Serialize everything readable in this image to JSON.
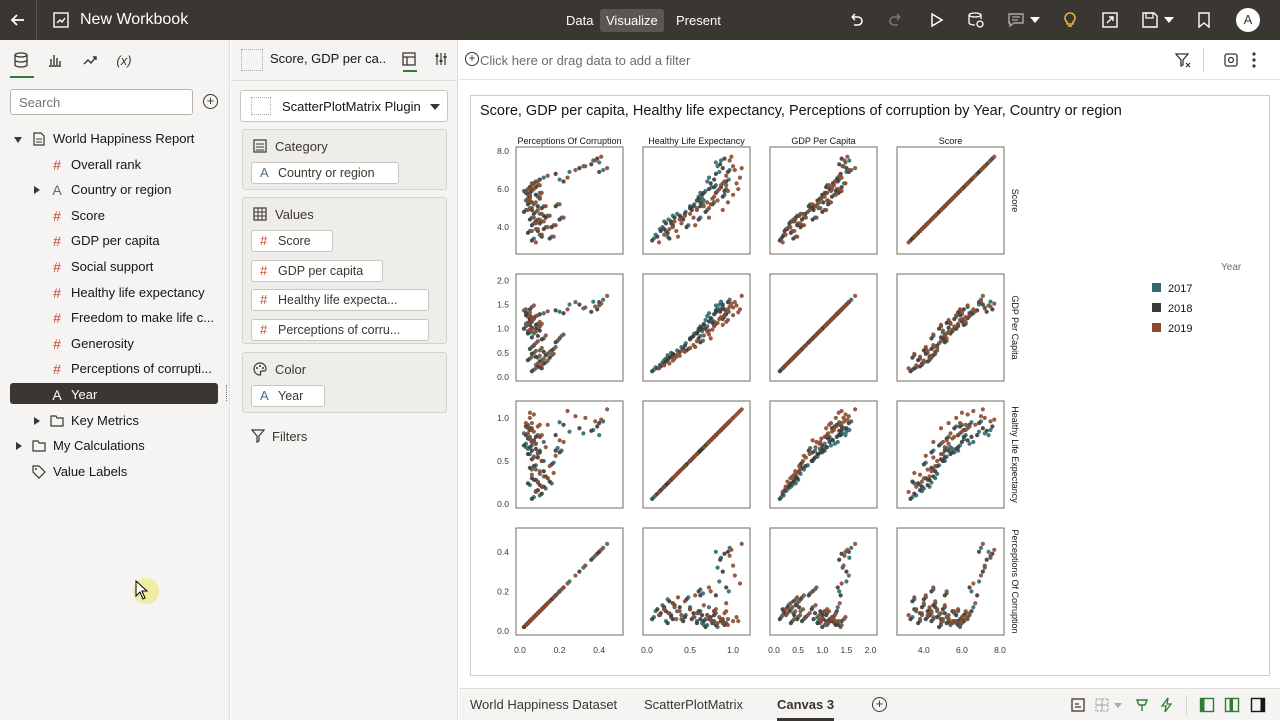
{
  "topbar": {
    "title": "New Workbook",
    "modes": [
      {
        "label": "Data",
        "active": false
      },
      {
        "label": "Visualize",
        "active": true
      },
      {
        "label": "Present",
        "active": false
      }
    ],
    "avatar": "A"
  },
  "left_panel": {
    "search_placeholder": "Search",
    "tree": [
      {
        "label": "World Happiness Report",
        "kind": "dataset",
        "indent": 0,
        "caret": "down"
      },
      {
        "label": "Overall rank",
        "kind": "measure",
        "indent": 1,
        "caret": ""
      },
      {
        "label": "Country or region",
        "kind": "attribute",
        "indent": 1,
        "caret": "right"
      },
      {
        "label": "Score",
        "kind": "measure",
        "indent": 1,
        "caret": ""
      },
      {
        "label": "GDP per capita",
        "kind": "measure",
        "indent": 1,
        "caret": ""
      },
      {
        "label": "Social support",
        "kind": "measure",
        "indent": 1,
        "caret": ""
      },
      {
        "label": "Healthy life expectancy",
        "kind": "measure",
        "indent": 1,
        "caret": ""
      },
      {
        "label": "Freedom to make life c...",
        "kind": "measure",
        "indent": 1,
        "caret": ""
      },
      {
        "label": "Generosity",
        "kind": "measure",
        "indent": 1,
        "caret": ""
      },
      {
        "label": "Perceptions of corrupti...",
        "kind": "measure",
        "indent": 1,
        "caret": ""
      },
      {
        "label": "Year",
        "kind": "attribute",
        "indent": 1,
        "caret": "",
        "selected": true
      },
      {
        "label": "Key Metrics",
        "kind": "folder",
        "indent": 1,
        "caret": "right"
      },
      {
        "label": "My Calculations",
        "kind": "folder",
        "indent": 0,
        "caret": "right"
      },
      {
        "label": "Value Labels",
        "kind": "tag",
        "indent": 0,
        "caret": ""
      }
    ]
  },
  "grammar": {
    "viz_name": "Score, GDP per ca...",
    "plugin": "ScatterPlotMatrix Plugin",
    "sections": [
      {
        "title": "Category",
        "icon": "list-icon",
        "items": [
          {
            "label": "Country or region",
            "kind": "attribute",
            "width": 148
          }
        ]
      },
      {
        "title": "Values",
        "icon": "grid-icon",
        "items": [
          {
            "label": "Score",
            "kind": "measure",
            "width": 82
          },
          {
            "label": "GDP per capita",
            "kind": "measure",
            "width": 132
          },
          {
            "label": "Healthy life expecta...",
            "kind": "measure",
            "width": 178
          },
          {
            "label": "Perceptions of corru...",
            "kind": "measure",
            "width": 178
          }
        ]
      },
      {
        "title": "Color",
        "icon": "palette-icon",
        "items": [
          {
            "label": "Year",
            "kind": "attribute",
            "width": 74
          }
        ]
      }
    ],
    "filters_label": "Filters"
  },
  "canvas": {
    "filter_placeholder": "Click here or drag data to add a filter"
  },
  "bottom_tabs": [
    {
      "label": "World Happiness Dataset",
      "active": false
    },
    {
      "label": "ScatterPlotMatrix",
      "active": false
    },
    {
      "label": "Canvas 3",
      "active": true
    }
  ],
  "chart_data": {
    "type": "scatter",
    "title": "Score, GDP per capita, Healthy life expectancy, Perceptions of corruption by Year, Country or region",
    "variables": [
      {
        "name": "Perceptions Of Corruption",
        "range": [
          0,
          0.5
        ],
        "ticks": [
          "0.0",
          "0.2",
          "0.4"
        ],
        "tick_values": [
          0,
          0.2,
          0.4
        ]
      },
      {
        "name": "Healthy Life Expectancy",
        "range": [
          0,
          1.15
        ],
        "ticks": [
          "0.0",
          "0.5",
          "1.0"
        ],
        "tick_values": [
          0,
          0.5,
          1.0
        ]
      },
      {
        "name": "GDP Per Capita",
        "range": [
          0,
          2.05
        ],
        "ticks": [
          "0.0",
          "0.5",
          "1.0",
          "1.5",
          "2.0"
        ],
        "tick_values": [
          0,
          0.5,
          1.0,
          1.5,
          2.0
        ]
      },
      {
        "name": "Score",
        "range": [
          2.8,
          8.0
        ],
        "ticks": [
          "4.0",
          "6.0",
          "8.0"
        ],
        "tick_values": [
          4.0,
          6.0,
          8.0
        ]
      }
    ],
    "column_order": [
      "Perceptions Of Corruption",
      "Healthy Life Expectancy",
      "GDP Per Capita",
      "Score"
    ],
    "row_order": [
      "Score",
      "GDP Per Capita",
      "Healthy Life Expectancy",
      "Perceptions Of Corruption"
    ],
    "legend": {
      "title": "Year",
      "placement": "right",
      "items": [
        {
          "label": "2017",
          "color": "#2e6b6e"
        },
        {
          "label": "2018",
          "color": "#3c3a37"
        },
        {
          "label": "2019",
          "color": "#8c4a2f"
        }
      ]
    },
    "series_note": "Points per year sampled from the World Happiness Report (approx. 150 countries each)",
    "series": [
      {
        "name": "2017",
        "color": "#2e6b6e",
        "points": [
          [
            7.5,
            1.56,
            0.86,
            0.37
          ],
          [
            7.4,
            1.48,
            0.8,
            0.4
          ],
          [
            7.2,
            1.42,
            0.82,
            0.32
          ],
          [
            6.9,
            1.5,
            0.84,
            0.25
          ],
          [
            6.6,
            1.32,
            0.72,
            0.12
          ],
          [
            6.4,
            1.26,
            0.7,
            0.08
          ],
          [
            6.1,
            1.2,
            0.75,
            0.05
          ],
          [
            5.9,
            1.18,
            0.68,
            0.06
          ],
          [
            5.8,
            1.05,
            0.62,
            0.1
          ],
          [
            5.6,
            1.0,
            0.6,
            0.09
          ],
          [
            5.5,
            0.95,
            0.64,
            0.04
          ],
          [
            5.4,
            1.1,
            0.66,
            0.03
          ],
          [
            5.2,
            0.9,
            0.55,
            0.07
          ],
          [
            5.1,
            0.8,
            0.5,
            0.12
          ],
          [
            5.0,
            0.92,
            0.58,
            0.05
          ],
          [
            4.8,
            0.7,
            0.45,
            0.08
          ],
          [
            4.7,
            0.55,
            0.35,
            0.1
          ],
          [
            4.6,
            0.48,
            0.3,
            0.14
          ],
          [
            4.5,
            0.62,
            0.4,
            0.06
          ],
          [
            4.4,
            0.4,
            0.25,
            0.09
          ],
          [
            4.3,
            0.35,
            0.2,
            0.11
          ],
          [
            4.2,
            0.5,
            0.28,
            0.07
          ],
          [
            4.0,
            0.3,
            0.18,
            0.13
          ],
          [
            3.9,
            0.25,
            0.15,
            0.08
          ],
          [
            3.8,
            0.38,
            0.22,
            0.05
          ],
          [
            3.6,
            0.2,
            0.1,
            0.1
          ],
          [
            3.5,
            0.45,
            0.24,
            0.16
          ],
          [
            3.4,
            0.15,
            0.08,
            0.07
          ],
          [
            6.3,
            1.45,
            0.88,
            0.06
          ],
          [
            6.0,
            1.3,
            0.92,
            0.04
          ],
          [
            5.3,
            1.15,
            0.78,
            0.05
          ],
          [
            4.9,
            1.05,
            0.7,
            0.03
          ],
          [
            5.7,
            1.25,
            0.9,
            0.04
          ],
          [
            6.5,
            1.35,
            0.95,
            0.2
          ],
          [
            7.0,
            1.6,
            0.96,
            0.42
          ],
          [
            4.1,
            0.58,
            0.48,
            0.17
          ],
          [
            5.2,
            0.75,
            0.65,
            0.19
          ],
          [
            4.5,
            0.85,
            0.62,
            0.21
          ],
          [
            6.2,
            1.1,
            0.8,
            0.09
          ],
          [
            5.9,
            1.38,
            0.82,
            0.02
          ]
        ]
      },
      {
        "name": "2018",
        "color": "#3c3a37",
        "points": [
          [
            7.6,
            1.4,
            0.9,
            0.39
          ],
          [
            7.3,
            1.35,
            0.85,
            0.36
          ],
          [
            7.1,
            1.5,
            0.88,
            0.3
          ],
          [
            6.8,
            1.38,
            0.8,
            0.18
          ],
          [
            6.5,
            1.3,
            0.78,
            0.1
          ],
          [
            6.3,
            1.22,
            0.74,
            0.07
          ],
          [
            6.0,
            1.15,
            0.72,
            0.06
          ],
          [
            5.8,
            1.08,
            0.66,
            0.05
          ],
          [
            5.7,
            1.0,
            0.64,
            0.08
          ],
          [
            5.5,
            0.96,
            0.6,
            0.1
          ],
          [
            5.4,
            0.9,
            0.58,
            0.04
          ],
          [
            5.3,
            1.02,
            0.62,
            0.06
          ],
          [
            5.1,
            0.85,
            0.54,
            0.09
          ],
          [
            5.0,
            0.78,
            0.5,
            0.11
          ],
          [
            4.9,
            0.82,
            0.52,
            0.06
          ],
          [
            4.7,
            0.65,
            0.44,
            0.07
          ],
          [
            4.6,
            0.52,
            0.38,
            0.12
          ],
          [
            4.5,
            0.45,
            0.32,
            0.13
          ],
          [
            4.4,
            0.58,
            0.42,
            0.05
          ],
          [
            4.3,
            0.42,
            0.28,
            0.08
          ],
          [
            4.2,
            0.32,
            0.22,
            0.1
          ],
          [
            4.1,
            0.48,
            0.3,
            0.06
          ],
          [
            3.9,
            0.28,
            0.2,
            0.12
          ],
          [
            3.8,
            0.22,
            0.16,
            0.09
          ],
          [
            3.7,
            0.35,
            0.24,
            0.04
          ],
          [
            3.5,
            0.18,
            0.12,
            0.11
          ],
          [
            3.4,
            0.4,
            0.26,
            0.15
          ],
          [
            3.3,
            0.12,
            0.06,
            0.06
          ],
          [
            6.1,
            1.4,
            0.86,
            0.05
          ],
          [
            5.9,
            1.28,
            0.9,
            0.03
          ],
          [
            5.2,
            1.12,
            0.76,
            0.04
          ],
          [
            4.8,
            1.0,
            0.68,
            0.02
          ],
          [
            5.6,
            1.2,
            0.88,
            0.05
          ],
          [
            6.4,
            1.32,
            0.92,
            0.22
          ],
          [
            6.9,
            1.55,
            0.94,
            0.4
          ],
          [
            4.0,
            0.55,
            0.46,
            0.16
          ],
          [
            5.1,
            0.72,
            0.62,
            0.18
          ],
          [
            4.4,
            0.8,
            0.6,
            0.2
          ],
          [
            6.1,
            1.08,
            0.78,
            0.08
          ],
          [
            5.8,
            1.34,
            0.8,
            0.03
          ]
        ]
      },
      {
        "name": "2019",
        "color": "#8c4a2f",
        "points": [
          [
            7.7,
            1.52,
            0.98,
            0.41
          ],
          [
            7.5,
            1.46,
            0.96,
            0.38
          ],
          [
            7.2,
            1.44,
            1.0,
            0.33
          ],
          [
            7.0,
            1.55,
            1.02,
            0.28
          ],
          [
            6.7,
            1.36,
            0.92,
            0.14
          ],
          [
            6.4,
            1.28,
            0.9,
            0.09
          ],
          [
            6.2,
            1.24,
            0.86,
            0.06
          ],
          [
            6.0,
            1.2,
            0.84,
            0.07
          ],
          [
            5.8,
            1.1,
            0.8,
            0.11
          ],
          [
            5.6,
            1.05,
            0.78,
            0.1
          ],
          [
            5.5,
            0.98,
            0.76,
            0.05
          ],
          [
            5.4,
            1.12,
            0.82,
            0.04
          ],
          [
            5.3,
            0.94,
            0.7,
            0.08
          ],
          [
            5.1,
            0.86,
            0.66,
            0.13
          ],
          [
            5.0,
            0.96,
            0.72,
            0.06
          ],
          [
            4.9,
            0.74,
            0.58,
            0.09
          ],
          [
            4.7,
            0.6,
            0.5,
            0.11
          ],
          [
            4.6,
            0.52,
            0.44,
            0.15
          ],
          [
            4.5,
            0.66,
            0.54,
            0.07
          ],
          [
            4.4,
            0.44,
            0.38,
            0.1
          ],
          [
            4.3,
            0.38,
            0.32,
            0.12
          ],
          [
            4.2,
            0.54,
            0.4,
            0.08
          ],
          [
            4.0,
            0.34,
            0.3,
            0.14
          ],
          [
            3.9,
            0.28,
            0.26,
            0.09
          ],
          [
            3.8,
            0.42,
            0.34,
            0.06
          ],
          [
            3.6,
            0.24,
            0.2,
            0.11
          ],
          [
            3.5,
            0.48,
            0.36,
            0.17
          ],
          [
            3.2,
            0.18,
            0.14,
            0.08
          ],
          [
            6.3,
            1.48,
            1.04,
            0.07
          ],
          [
            6.0,
            1.34,
            1.06,
            0.05
          ],
          [
            5.3,
            1.18,
            0.94,
            0.06
          ],
          [
            4.9,
            1.08,
            0.88,
            0.04
          ],
          [
            5.7,
            1.28,
            1.0,
            0.05
          ],
          [
            6.6,
            1.4,
            1.08,
            0.24
          ],
          [
            7.1,
            1.68,
            1.1,
            0.44
          ],
          [
            4.1,
            0.62,
            0.56,
            0.18
          ],
          [
            5.2,
            0.8,
            0.74,
            0.2
          ],
          [
            4.5,
            0.88,
            0.72,
            0.22
          ],
          [
            6.2,
            1.14,
            0.92,
            0.1
          ],
          [
            5.9,
            1.4,
            0.94,
            0.03
          ]
        ]
      }
    ]
  }
}
